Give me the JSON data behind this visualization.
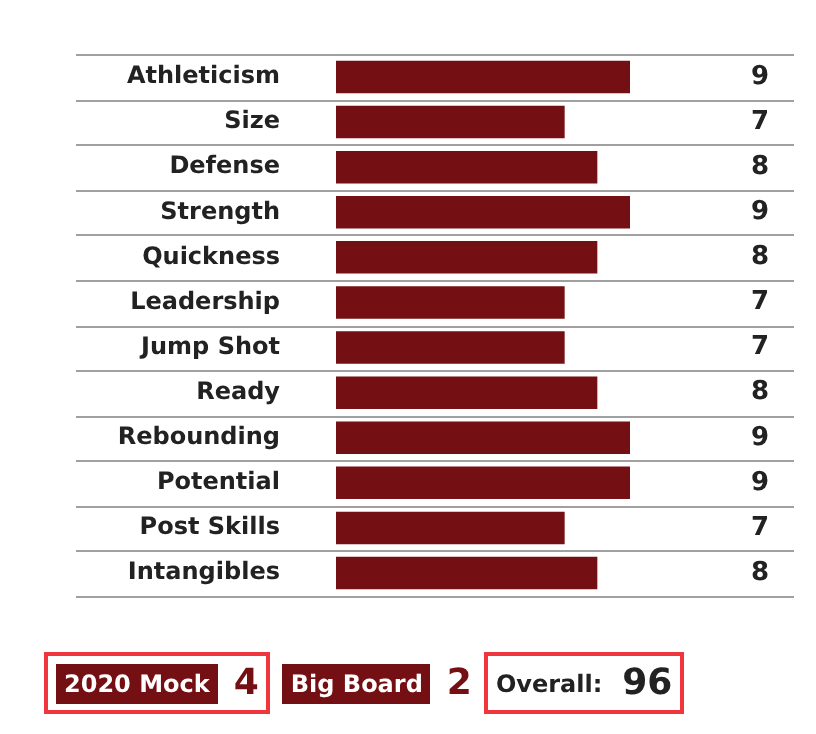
{
  "chart_data": {
    "type": "bar",
    "orientation": "horizontal",
    "categories": [
      "Athleticism",
      "Size",
      "Defense",
      "Strength",
      "Quickness",
      "Leadership",
      "Jump Shot",
      "Ready",
      "Rebounding",
      "Potential",
      "Post Skills",
      "Intangibles"
    ],
    "values": [
      9,
      7,
      8,
      9,
      8,
      7,
      7,
      8,
      9,
      9,
      7,
      8
    ],
    "color": "#741013",
    "data_labels": true,
    "grid": "y",
    "legend": false,
    "annotations": [
      "2020 Mock",
      "4",
      "Big Board",
      "2",
      "Overall:",
      "96"
    ]
  }
}
